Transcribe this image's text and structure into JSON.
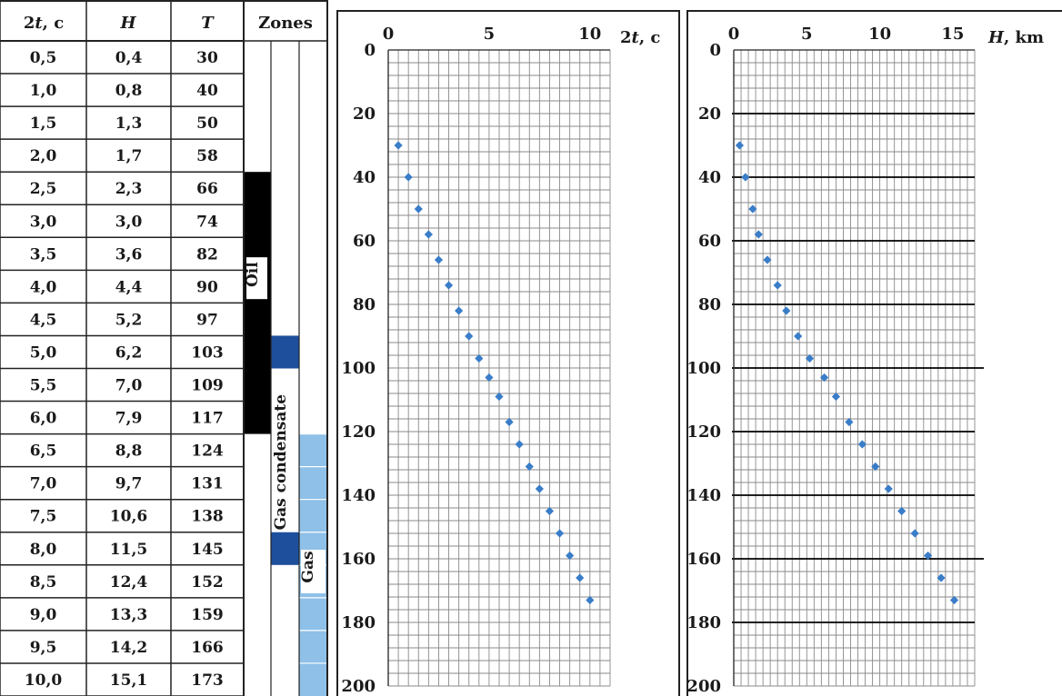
{
  "table": {
    "columns": [
      "2t, c",
      "H",
      "T",
      "Zones"
    ],
    "rows": [
      [
        "0,5",
        "0,4",
        "30"
      ],
      [
        "1,0",
        "0,8",
        "40"
      ],
      [
        "1,5",
        "1,3",
        "50"
      ],
      [
        "2,0",
        "1,7",
        "58"
      ],
      [
        "2,5",
        "2,3",
        "66"
      ],
      [
        "3,0",
        "3,0",
        "74"
      ],
      [
        "3,5",
        "3,6",
        "82"
      ],
      [
        "4,0",
        "4,4",
        "90"
      ],
      [
        "4,5",
        "5,2",
        "97"
      ],
      [
        "5,0",
        "6,2",
        "103"
      ],
      [
        "5,5",
        "7,0",
        "109"
      ],
      [
        "6,0",
        "7,9",
        "117"
      ],
      [
        "6,5",
        "8,8",
        "124"
      ],
      [
        "7,0",
        "9,7",
        "131"
      ],
      [
        "7,5",
        "10,6",
        "138"
      ],
      [
        "8,0",
        "11,5",
        "145"
      ],
      [
        "8,5",
        "12,4",
        "152"
      ],
      [
        "9,0",
        "13,3",
        "159"
      ],
      [
        "9,5",
        "14,2",
        "166"
      ],
      [
        "10,0",
        "15,1",
        "173"
      ]
    ],
    "zones": [
      {
        "label": "Oil",
        "column": 0,
        "from_row": 4,
        "to_row": 11,
        "color": "#000000"
      },
      {
        "label": "Gas condensate",
        "column": 1,
        "from_row": 9,
        "to_row": 15,
        "color": "#1e4f9c"
      },
      {
        "label": "Gas",
        "column": 2,
        "from_row": 12,
        "to_row": 19,
        "color": "#8ec0e8"
      }
    ]
  },
  "colors": {
    "marker": "#3a7dc8",
    "oil": "#000000",
    "gas_condensate_dark": "#1e4f9c",
    "gas": "#8ec0e8",
    "grid": "#8a8a8a"
  },
  "chart_data": [
    {
      "type": "scatter",
      "xlabel": "2t, c",
      "ylabel": "",
      "xlim": [
        0,
        11
      ],
      "ylim": [
        0,
        200
      ],
      "x_ticks": [
        0,
        5,
        10
      ],
      "y_ticks": [
        0,
        20,
        40,
        60,
        80,
        100,
        120,
        140,
        160,
        180,
        200
      ],
      "y_inverted": true,
      "grid": true,
      "series": [
        {
          "x": [
            0.5,
            1.0,
            1.5,
            2.0,
            2.5,
            3.0,
            3.5,
            4.0,
            4.5,
            5.0,
            5.5,
            6.0,
            6.5,
            7.0,
            7.5,
            8.0,
            8.5,
            9.0,
            9.5,
            10.0
          ],
          "y": [
            30,
            40,
            50,
            58,
            66,
            74,
            82,
            90,
            97,
            103,
            109,
            117,
            124,
            131,
            138,
            145,
            152,
            159,
            166,
            173
          ]
        }
      ]
    },
    {
      "type": "scatter",
      "xlabel": "H, km",
      "ylabel": "",
      "xlim": [
        0,
        16.5
      ],
      "ylim": [
        0,
        200
      ],
      "x_ticks": [
        0,
        5,
        10,
        15
      ],
      "y_ticks": [
        0,
        20,
        40,
        60,
        80,
        100,
        120,
        140,
        160,
        180,
        200
      ],
      "y_inverted": true,
      "grid": true,
      "series": [
        {
          "x": [
            0.4,
            0.8,
            1.3,
            1.7,
            2.3,
            3.0,
            3.6,
            4.4,
            5.2,
            6.2,
            7.0,
            7.9,
            8.8,
            9.7,
            10.6,
            11.5,
            12.4,
            13.3,
            14.2,
            15.1
          ],
          "y": [
            30,
            40,
            50,
            58,
            66,
            74,
            82,
            90,
            97,
            103,
            109,
            117,
            124,
            131,
            138,
            145,
            152,
            159,
            166,
            173
          ]
        }
      ]
    }
  ]
}
